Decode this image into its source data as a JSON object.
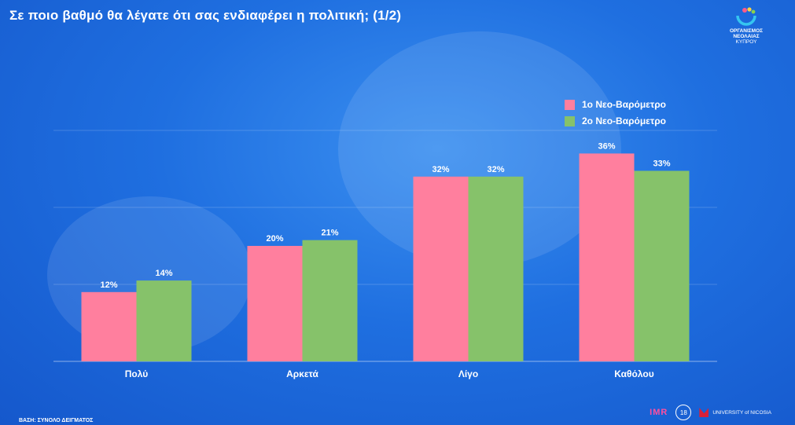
{
  "title": "Σε ποιο βαθμό θα λέγατε ότι σας ενδιαφέρει η πολιτική; (1/2)",
  "logo": {
    "line1": "ΟΡΓΑΝΙΣΜΟΣ",
    "line2": "ΝΕΟΛΑΙΑΣ",
    "line3": "ΚΥΠΡΟΥ"
  },
  "footer": {
    "base": "ΒΑΣΗ: ΣΥΝΟΛΟ ΔΕΙΓΜΑΤΟΣ",
    "imr": "IMR",
    "badge": "18",
    "university": "UNIVERSITY of NICOSIA"
  },
  "colors": {
    "series1": "#ff7f9e",
    "series2": "#86c26a"
  },
  "chart_data": {
    "type": "bar",
    "categories": [
      "Πολύ",
      "Αρκετά",
      "Λίγο",
      "Καθόλου"
    ],
    "series": [
      {
        "name": "1ο Νεο-Βαρόμετρο",
        "values": [
          12,
          20,
          32,
          36
        ],
        "labels": [
          "12%",
          "20%",
          "32%",
          "36%"
        ]
      },
      {
        "name": "2ο Νεο-Βαρόμετρο",
        "values": [
          14,
          21,
          32,
          33
        ],
        "labels": [
          "14%",
          "21%",
          "32%",
          "33%"
        ]
      }
    ],
    "ylim": [
      0,
      40
    ],
    "grid": true,
    "legend": "top-right"
  }
}
